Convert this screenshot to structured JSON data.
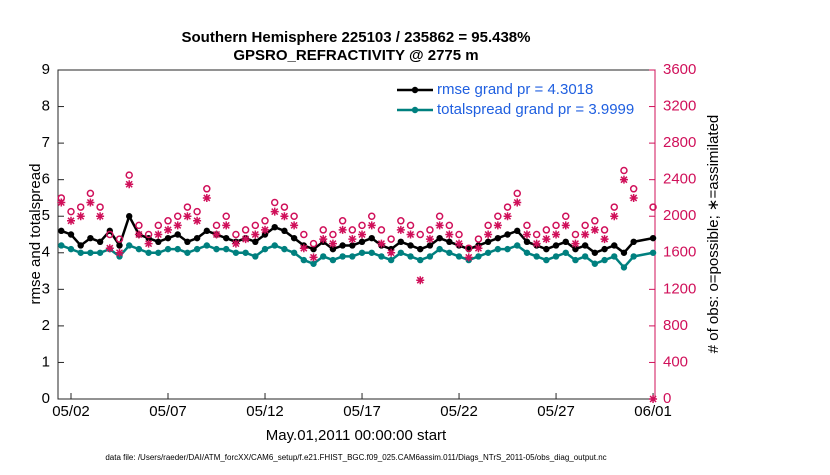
{
  "chart_data": {
    "type": "line",
    "title": "Southern Hemisphere 225103 / 235862 = 95.438%",
    "subtitle": "GPSRO_REFRACTIVITY @ 2775 m",
    "x_label": "May.01,2011 00:00:00 start",
    "y_label": "rmse and totalspread",
    "y2_label": "# of obs: o=possible; ∗=assimilated",
    "footnote": "data file: /Users/raeder/DAI/ATM_forcXX/CAM6_setup/f.e21.FHIST_BGC.f09_025.CAM6assim.011/Diags_NTrS_2011-05/obs_diag_output.nc",
    "legend": "northeast",
    "xlim": [
      0.33,
      31.1
    ],
    "xticks": [
      {
        "value": 1,
        "label": "05/02"
      },
      {
        "value": 6,
        "label": "05/07"
      },
      {
        "value": 11,
        "label": "05/12"
      },
      {
        "value": 16,
        "label": "05/17"
      },
      {
        "value": 21,
        "label": "05/22"
      },
      {
        "value": 26,
        "label": "05/27"
      },
      {
        "value": 31,
        "label": "06/01"
      }
    ],
    "ylim": [
      0,
      9
    ],
    "yticks": [
      0,
      1,
      2,
      3,
      4,
      5,
      6,
      7,
      8,
      9
    ],
    "y2lim": [
      0,
      3600
    ],
    "y2ticks": [
      0,
      400,
      800,
      1200,
      1600,
      2000,
      2400,
      2800,
      3200,
      3600
    ],
    "y2_color": "#d0105a",
    "x": [
      0.5,
      1,
      1.5,
      2,
      2.5,
      3,
      3.5,
      4,
      4.5,
      5,
      5.5,
      6,
      6.5,
      7,
      7.5,
      8,
      8.5,
      9,
      9.5,
      10,
      10.5,
      11,
      11.5,
      12,
      12.5,
      13,
      13.5,
      14,
      14.5,
      15,
      15.5,
      16,
      16.5,
      17,
      17.5,
      18,
      18.5,
      19,
      19.5,
      20,
      20.5,
      21,
      21.5,
      22,
      22.5,
      23,
      23.5,
      24,
      24.5,
      25,
      25.5,
      26,
      26.5,
      27,
      27.5,
      28,
      28.5,
      29,
      29.5,
      30,
      31
    ],
    "series": [
      {
        "name": "rmse grand pr = 4.3018",
        "color": "#000000",
        "mark": "line",
        "values": [
          4.6,
          4.5,
          4.2,
          4.4,
          4.3,
          4.6,
          4.2,
          5.0,
          4.5,
          4.4,
          4.3,
          4.4,
          4.5,
          4.3,
          4.4,
          4.6,
          4.5,
          4.4,
          4.3,
          4.4,
          4.3,
          4.5,
          4.7,
          4.6,
          4.4,
          4.2,
          4.1,
          4.3,
          4.1,
          4.2,
          4.2,
          4.3,
          4.4,
          4.2,
          4.1,
          4.3,
          4.2,
          4.1,
          4.2,
          4.4,
          4.3,
          4.2,
          4.1,
          4.2,
          4.3,
          4.4,
          4.5,
          4.6,
          4.3,
          4.2,
          4.1,
          4.2,
          4.3,
          4.1,
          4.2,
          4.0,
          4.1,
          4.2,
          4.0,
          4.3,
          4.4
        ]
      },
      {
        "name": "totalspread grand pr = 3.9999",
        "color": "#00807f",
        "mark": "line",
        "values": [
          4.2,
          4.1,
          4.0,
          4.0,
          4.0,
          4.1,
          3.9,
          4.2,
          4.1,
          4.0,
          4.0,
          4.1,
          4.1,
          4.0,
          4.1,
          4.2,
          4.1,
          4.1,
          4.0,
          4.0,
          3.9,
          4.1,
          4.2,
          4.1,
          4.0,
          3.8,
          3.7,
          3.9,
          3.8,
          3.9,
          3.9,
          4.0,
          4.0,
          3.9,
          3.8,
          4.0,
          3.9,
          3.8,
          3.9,
          4.1,
          4.0,
          3.9,
          3.8,
          3.9,
          4.0,
          4.1,
          4.1,
          4.2,
          4.0,
          3.9,
          3.8,
          3.9,
          4.0,
          3.8,
          3.9,
          3.7,
          3.8,
          3.9,
          3.6,
          3.9,
          4.0
        ]
      },
      {
        "color": "#d0105a",
        "axis": "y2",
        "mark": "circle",
        "values": [
          2200,
          2050,
          2100,
          2250,
          2100,
          1800,
          1750,
          2450,
          1900,
          1800,
          1900,
          1950,
          2000,
          2100,
          2050,
          2300,
          1900,
          2000,
          1800,
          1850,
          1900,
          1950,
          2150,
          2100,
          2000,
          1800,
          1700,
          1850,
          1800,
          1950,
          1850,
          1900,
          2000,
          1850,
          1750,
          1950,
          1900,
          1800,
          1850,
          2000,
          1900,
          1800,
          1650,
          1750,
          1900,
          2000,
          2100,
          2250,
          1900,
          1800,
          1850,
          1900,
          2000,
          1800,
          1900,
          1950,
          1850,
          2100,
          2500,
          2300,
          2100
        ]
      },
      {
        "color": "#d0105a",
        "axis": "y2",
        "mark": "asterisk",
        "values": [
          2150,
          1950,
          2000,
          2150,
          2000,
          1650,
          1600,
          2350,
          1800,
          1700,
          1800,
          1850,
          1900,
          2000,
          1950,
          2200,
          1800,
          1900,
          1700,
          1750,
          1800,
          1850,
          2050,
          2000,
          1900,
          1650,
          1550,
          1750,
          1700,
          1850,
          1750,
          1800,
          1900,
          1700,
          1600,
          1850,
          1800,
          1300,
          1750,
          1900,
          1800,
          1700,
          1550,
          1650,
          1800,
          1900,
          2000,
          2150,
          1800,
          1700,
          1750,
          1800,
          1900,
          1700,
          1800,
          1850,
          1750,
          2000,
          2400,
          2200,
          0
        ]
      }
    ]
  }
}
